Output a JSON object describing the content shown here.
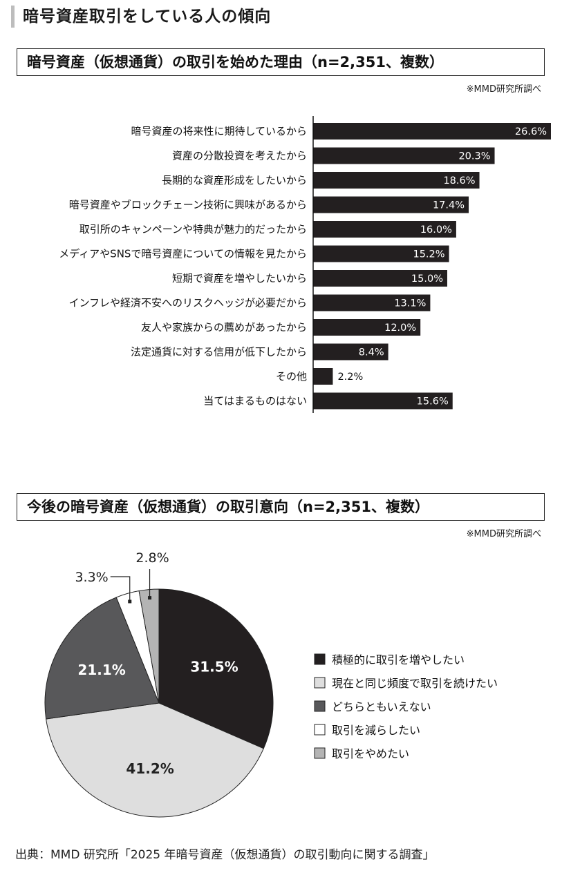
{
  "heading": "暗号資産取引をしている人の傾向",
  "source": "出典：MMD 研究所「2025 年暗号資産（仮想通貨）の取引動向に関する調査」",
  "chart_data": [
    {
      "type": "bar",
      "title": "暗号資産（仮想通貨）の取引を始めた理由（n=2,351、複数）",
      "note": "※MMD研究所調べ",
      "orientation": "horizontal",
      "bar_color": "#231f20",
      "categories": [
        "暗号資産の将来性に期待しているから",
        "資産の分散投資を考えたから",
        "長期的な資産形成をしたいから",
        "暗号資産やブロックチェーン技術に興味があるから",
        "取引所のキャンペーンや特典が魅力的だったから",
        "メディアやSNSで暗号資産についての情報を見たから",
        "短期で資産を増やしたいから",
        "インフレや経済不安へのリスクヘッジが必要だから",
        "友人や家族からの薦めがあったから",
        "法定通貨に対する信用が低下したから",
        "その他",
        "当てはまるものはない"
      ],
      "values": [
        26.6,
        20.3,
        18.6,
        17.4,
        16.0,
        15.2,
        15.0,
        13.1,
        12.0,
        8.4,
        2.2,
        15.6
      ],
      "value_labels": [
        "26.6%",
        "20.3%",
        "18.6%",
        "17.4%",
        "16.0%",
        "15.2%",
        "15.0%",
        "13.1%",
        "12.0%",
        "8.4%",
        "2.2%",
        "15.6%"
      ],
      "xlim": [
        0,
        26.6
      ],
      "grid": false
    },
    {
      "type": "pie",
      "title": "今後の暗号資産（仮想通貨）の取引意向（n=2,351、複数）",
      "note": "※MMD研究所調べ",
      "legend_position": "right",
      "slices": [
        {
          "label": "積極的に取引を増やしたい",
          "value": 31.5,
          "value_label": "31.5%",
          "color": "#231f20"
        },
        {
          "label": "現在と同じ頻度で取引を続けたい",
          "value": 41.2,
          "value_label": "41.2%",
          "color": "#dedede"
        },
        {
          "label": "どちらともいえない",
          "value": 21.1,
          "value_label": "21.1%",
          "color": "#58585a"
        },
        {
          "label": "取引を減らしたい",
          "value": 3.3,
          "value_label": "3.3%",
          "color": "#ffffff"
        },
        {
          "label": "取引をやめたい",
          "value": 2.8,
          "value_label": "2.8%",
          "color": "#b4b4b4"
        }
      ]
    }
  ]
}
